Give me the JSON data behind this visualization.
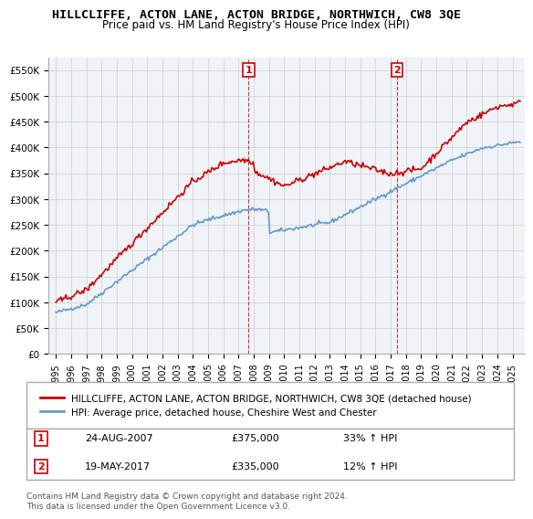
{
  "title": "HILLCLIFFE, ACTON LANE, ACTON BRIDGE, NORTHWICH, CW8 3QE",
  "subtitle": "Price paid vs. HM Land Registry's House Price Index (HPI)",
  "red_label": "HILLCLIFFE, ACTON LANE, ACTON BRIDGE, NORTHWICH, CW8 3QE (detached house)",
  "blue_label": "HPI: Average price, detached house, Cheshire West and Chester",
  "sale1_date": "24-AUG-2007",
  "sale1_price": "£375,000",
  "sale1_hpi": "33% ↑ HPI",
  "sale2_date": "19-MAY-2017",
  "sale2_price": "£335,000",
  "sale2_hpi": "12% ↑ HPI",
  "footer": "Contains HM Land Registry data © Crown copyright and database right 2024.\nThis data is licensed under the Open Government Licence v3.0.",
  "ylim": [
    0,
    575000
  ],
  "yticks": [
    0,
    50000,
    100000,
    150000,
    200000,
    250000,
    300000,
    350000,
    400000,
    450000,
    500000,
    550000
  ],
  "red_color": "#cc0000",
  "blue_color": "#6699cc",
  "vline_color": "#cc0000",
  "bg_color": "#ffffff",
  "grid_color": "#cccccc"
}
